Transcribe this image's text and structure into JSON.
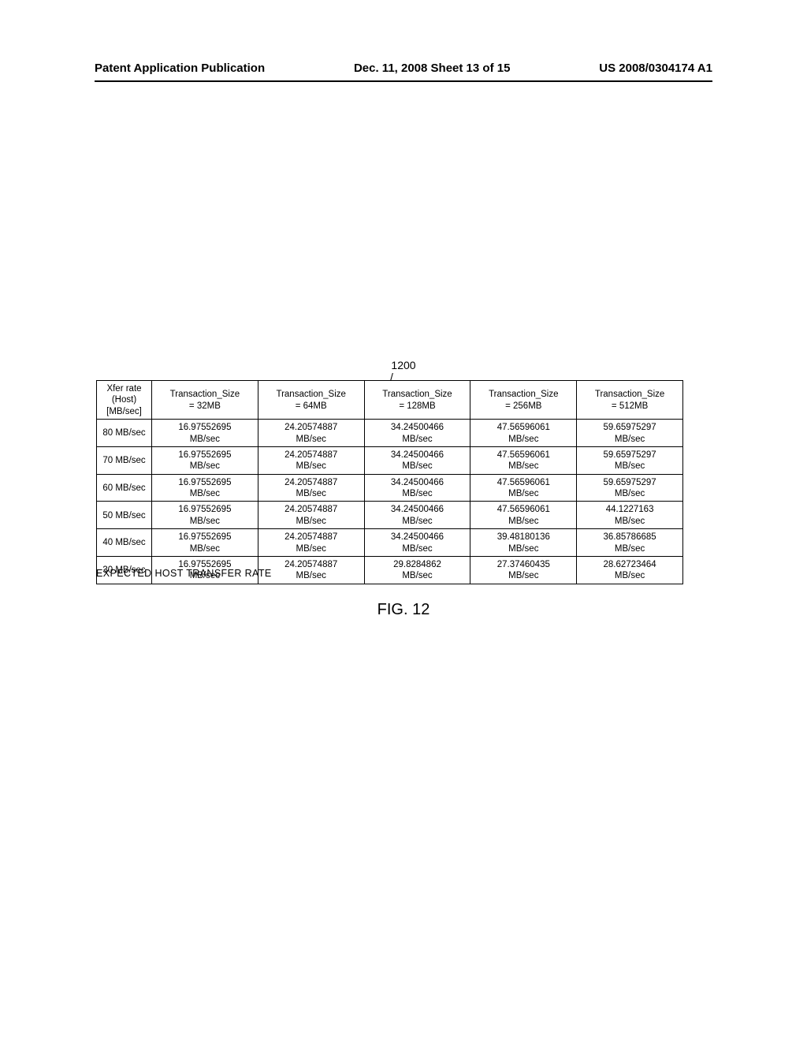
{
  "header": {
    "left": "Patent Application Publication",
    "center": "Dec. 11, 2008  Sheet 13 of 15",
    "right": "US 2008/0304174 A1"
  },
  "figure": {
    "ref_number": "1200",
    "caption": "EXPECTED HOST TRANSFER RATE",
    "label": "FIG. 12"
  },
  "table": {
    "columns": [
      {
        "line1": "Xfer rate (Host)",
        "line2": "[MB/sec]"
      },
      {
        "line1": "Transaction_Size",
        "line2": "= 32MB"
      },
      {
        "line1": "Transaction_Size",
        "line2": "=  64MB"
      },
      {
        "line1": "Transaction_Size",
        "line2": "= 128MB"
      },
      {
        "line1": "Transaction_Size",
        "line2": "= 256MB"
      },
      {
        "line1": "Transaction_Size",
        "line2": "= 512MB"
      }
    ],
    "rows": [
      {
        "rate": "80 MB/sec",
        "cells": [
          {
            "v": "16.97552695",
            "u": "MB/sec"
          },
          {
            "v": "24.20574887",
            "u": "MB/sec"
          },
          {
            "v": "34.24500466",
            "u": "MB/sec"
          },
          {
            "v": "47.56596061",
            "u": "MB/sec"
          },
          {
            "v": "59.65975297",
            "u": "MB/sec"
          }
        ]
      },
      {
        "rate": "70 MB/sec",
        "cells": [
          {
            "v": "16.97552695",
            "u": "MB/sec"
          },
          {
            "v": "24.20574887",
            "u": "MB/sec"
          },
          {
            "v": "34.24500466",
            "u": "MB/sec"
          },
          {
            "v": "47.56596061",
            "u": "MB/sec"
          },
          {
            "v": "59.65975297",
            "u": "MB/sec"
          }
        ]
      },
      {
        "rate": "60 MB/sec",
        "cells": [
          {
            "v": "16.97552695",
            "u": "MB/sec"
          },
          {
            "v": "24.20574887",
            "u": "MB/sec"
          },
          {
            "v": "34.24500466",
            "u": "MB/sec"
          },
          {
            "v": "47.56596061",
            "u": "MB/sec"
          },
          {
            "v": "59.65975297",
            "u": "MB/sec"
          }
        ]
      },
      {
        "rate": "50 MB/sec",
        "cells": [
          {
            "v": "16.97552695",
            "u": "MB/sec"
          },
          {
            "v": "24.20574887",
            "u": "MB/sec"
          },
          {
            "v": "34.24500466",
            "u": "MB/sec"
          },
          {
            "v": "47.56596061",
            "u": "MB/sec"
          },
          {
            "v": "44.1227163",
            "u": "MB/sec"
          }
        ]
      },
      {
        "rate": "40 MB/sec",
        "cells": [
          {
            "v": "16.97552695",
            "u": "MB/sec"
          },
          {
            "v": "24.20574887",
            "u": "MB/sec"
          },
          {
            "v": "34.24500466",
            "u": "MB/sec"
          },
          {
            "v": "39.48180136",
            "u": "MB/sec"
          },
          {
            "v": "36.85786685",
            "u": "MB/sec"
          }
        ]
      },
      {
        "rate": "30 MB/sec",
        "cells": [
          {
            "v": "16.97552695",
            "u": "MB/sec"
          },
          {
            "v": "24.20574887",
            "u": "MB/sec"
          },
          {
            "v": "29.8284862",
            "u": "MB/sec"
          },
          {
            "v": "27.37460435",
            "u": "MB/sec"
          },
          {
            "v": "28.62723464",
            "u": "MB/sec"
          }
        ]
      }
    ]
  }
}
